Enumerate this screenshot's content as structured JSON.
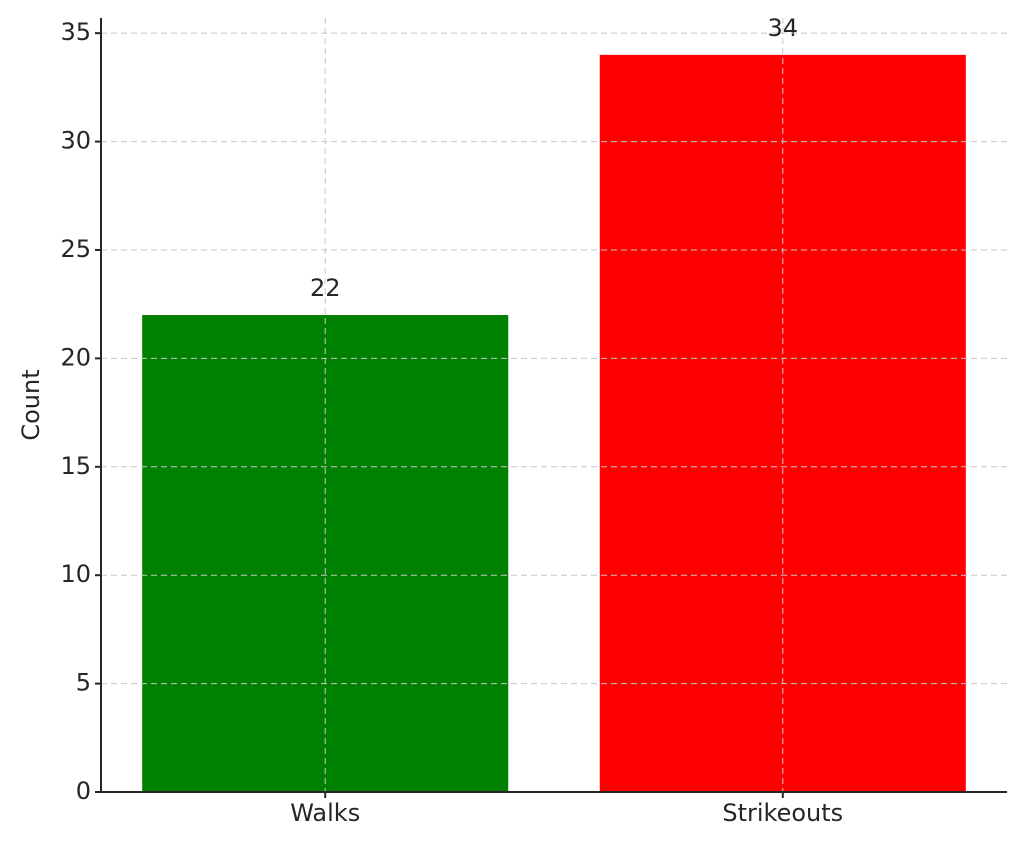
{
  "chart_data": {
    "type": "bar",
    "categories": [
      "Walks",
      "Strikeouts"
    ],
    "values": [
      22,
      34
    ],
    "colors": [
      "#008000",
      "#ff0000"
    ],
    "y_label": "Count",
    "ylim": [
      0,
      35.7
    ],
    "yticks": [
      0,
      5,
      10,
      15,
      20,
      25,
      30,
      35
    ],
    "grid": true
  }
}
